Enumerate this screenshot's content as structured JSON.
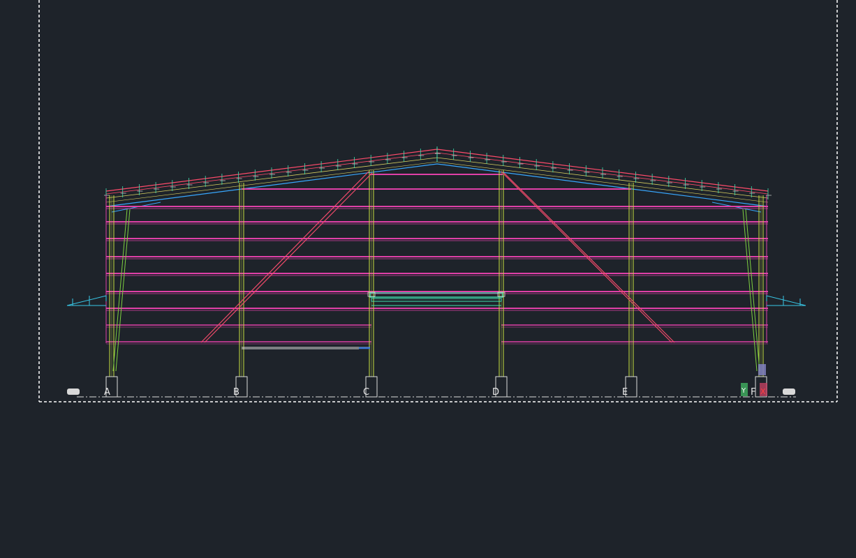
{
  "grid_axes": [
    "A",
    "B",
    "C",
    "D",
    "E",
    "F"
  ],
  "ucs_icon": {
    "x_label": "X",
    "y_label": "Y"
  },
  "colors": {
    "background": "#1e232a",
    "girts": "#e040a8",
    "columns": "#c8e040",
    "roof_top": "#ff4a6a",
    "roof_bottom": "#38a8ff",
    "purlins": "#d8d060",
    "bracing": "#f04a6a",
    "door": "#40e0b0",
    "axis_line": "#dcdcdc",
    "border": "#ffffff",
    "stays": "#7ed040"
  }
}
